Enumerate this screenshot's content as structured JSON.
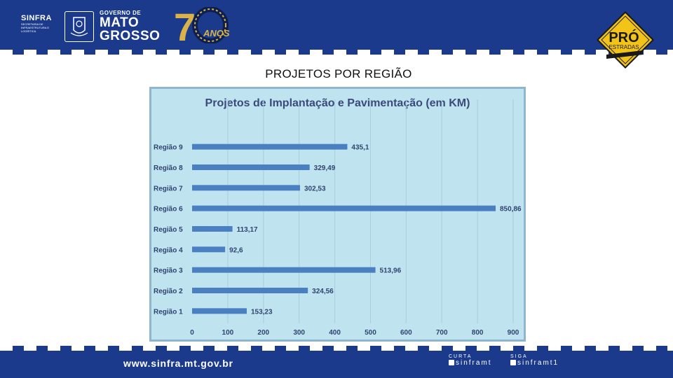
{
  "header": {
    "sinfra_name": "SINFRA",
    "sinfra_desc": "SECRETARIA DE INFRAESTRUTURA E LOGÍSTICA",
    "gov_small": "GOVERNO DE",
    "gov_line1": "MATO",
    "gov_line2": "GROSSO",
    "anniversary_text": "ANOS",
    "program_top": "PRÓ",
    "program_bottom": "ESTRADAS"
  },
  "page_title": "PROJETOS POR REGIÃO",
  "footer": {
    "url": "www.sinfra.mt.gov.br",
    "social1_label": "CURTA",
    "social1_handle": "sinframt",
    "social2_label": "SIGA",
    "social2_handle": "sinframt1"
  },
  "colors": {
    "brand_blue": "#1b3a8c",
    "chart_bg": "#bfe3ef",
    "bar": "#4a7fc1",
    "badge_yellow": "#f2c418"
  },
  "chart_data": {
    "type": "bar",
    "orientation": "horizontal",
    "title": "Projetos de Implantação e Pavimentação (em KM)",
    "categories": [
      "Região 9",
      "Região 8",
      "Região 7",
      "Região 6",
      "Região 5",
      "Região 4",
      "Região 3",
      "Região 2",
      "Região 1"
    ],
    "values": [
      435.1,
      329.49,
      302.53,
      850.86,
      113.17,
      92.6,
      513.96,
      324.56,
      153.23
    ],
    "value_labels": [
      "435,1",
      "329,49",
      "302,53",
      "850,86",
      "113,17",
      "92,6",
      "513,96",
      "324,56",
      "153,23"
    ],
    "xlim": [
      0,
      900
    ],
    "xticks": [
      0,
      100,
      200,
      300,
      400,
      500,
      600,
      700,
      800,
      900
    ],
    "grid": true,
    "legend": "none"
  }
}
